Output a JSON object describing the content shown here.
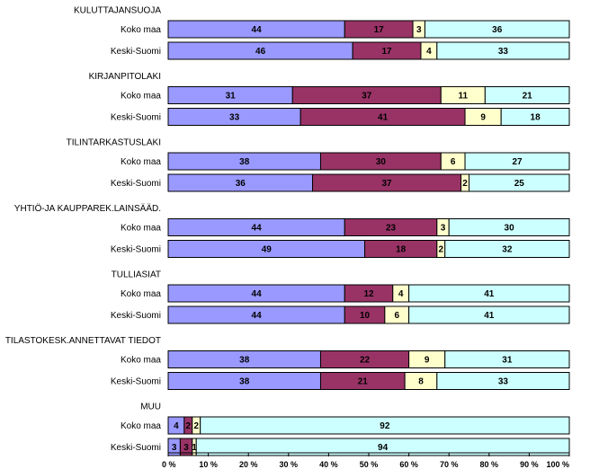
{
  "chart_data": {
    "type": "bar",
    "orientation": "horizontal",
    "stacked": true,
    "percent_scale": true,
    "xlim": [
      0,
      100
    ],
    "x_ticks": [
      "0 %",
      "10 %",
      "20 %",
      "30 %",
      "40 %",
      "50 %",
      "60 %",
      "70 %",
      "80 %",
      "90 %",
      "100 %"
    ],
    "series_colors": [
      "#9999ff",
      "#993366",
      "#ffffcc",
      "#ccffff"
    ],
    "groups": [
      {
        "title": "KULUTTAJANSUOJA",
        "rows": [
          {
            "label": "Koko maa",
            "values": [
              44,
              17,
              3,
              36
            ]
          },
          {
            "label": "Keski-Suomi",
            "values": [
              46,
              17,
              4,
              33
            ]
          }
        ]
      },
      {
        "title": "KIRJANPITOLAKI",
        "rows": [
          {
            "label": "Koko maa",
            "values": [
              31,
              37,
              11,
              21
            ]
          },
          {
            "label": "Keski-Suomi",
            "values": [
              33,
              41,
              9,
              18
            ]
          }
        ]
      },
      {
        "title": "TILINTARKASTUSLAKI",
        "rows": [
          {
            "label": "Koko maa",
            "values": [
              38,
              30,
              6,
              27
            ]
          },
          {
            "label": "Keski-Suomi",
            "values": [
              36,
              37,
              2,
              25
            ]
          }
        ]
      },
      {
        "title": "YHTIÖ-JA KAUPPAREK.LAINSÄÄD.",
        "rows": [
          {
            "label": "Koko maa",
            "values": [
              44,
              23,
              3,
              30
            ]
          },
          {
            "label": "Keski-Suomi",
            "values": [
              49,
              18,
              2,
              32
            ]
          }
        ]
      },
      {
        "title": "TULLIASIAT",
        "rows": [
          {
            "label": "Koko maa",
            "values": [
              44,
              12,
              4,
              41
            ]
          },
          {
            "label": "Keski-Suomi",
            "values": [
              44,
              10,
              6,
              41
            ]
          }
        ]
      },
      {
        "title": "TILASTOKESK.ANNETTAVAT TIEDOT",
        "rows": [
          {
            "label": "Koko maa",
            "values": [
              38,
              22,
              9,
              31
            ]
          },
          {
            "label": "Keski-Suomi",
            "values": [
              38,
              21,
              8,
              33
            ]
          }
        ]
      },
      {
        "title": "MUU",
        "rows": [
          {
            "label": "Koko maa",
            "values": [
              4,
              2,
              2,
              92
            ]
          },
          {
            "label": "Keski-Suomi",
            "values": [
              3,
              3,
              1,
              94
            ]
          }
        ]
      }
    ]
  }
}
